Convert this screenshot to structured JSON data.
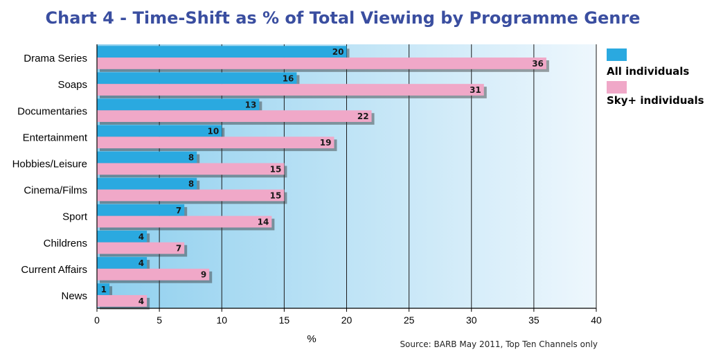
{
  "title": "Chart  4 - Time-Shift as % of Total Viewing by Programme Genre",
  "source": "Source: BARB May 2011, Top Ten Channels only",
  "colors": {
    "all_individuals": "#2aa9e0",
    "sky_individuals": "#f0a8c8",
    "title": "#3a4ea0",
    "plot_background_left": "#8ecfee",
    "plot_background_right": "#eef7fd"
  },
  "chart_data": {
    "type": "bar",
    "orientation": "horizontal",
    "categories": [
      "Drama Series",
      "Soaps",
      "Documentaries",
      "Entertainment",
      "Hobbies/Leisure",
      "Cinema/Films",
      "Sport",
      "Childrens",
      "Current Affairs",
      "News"
    ],
    "series": [
      {
        "name": "All individuals",
        "values": [
          20,
          16,
          13,
          10,
          8,
          8,
          7,
          4,
          4,
          1
        ]
      },
      {
        "name": "Sky+ individuals",
        "values": [
          36,
          31,
          22,
          19,
          15,
          15,
          14,
          7,
          9,
          4
        ]
      }
    ],
    "xlabel": "%",
    "ylabel": "",
    "xlim": [
      0,
      40
    ],
    "xticks": [
      0,
      5,
      10,
      15,
      20,
      25,
      30,
      35,
      40
    ],
    "grid": true,
    "legend_position": "right"
  }
}
